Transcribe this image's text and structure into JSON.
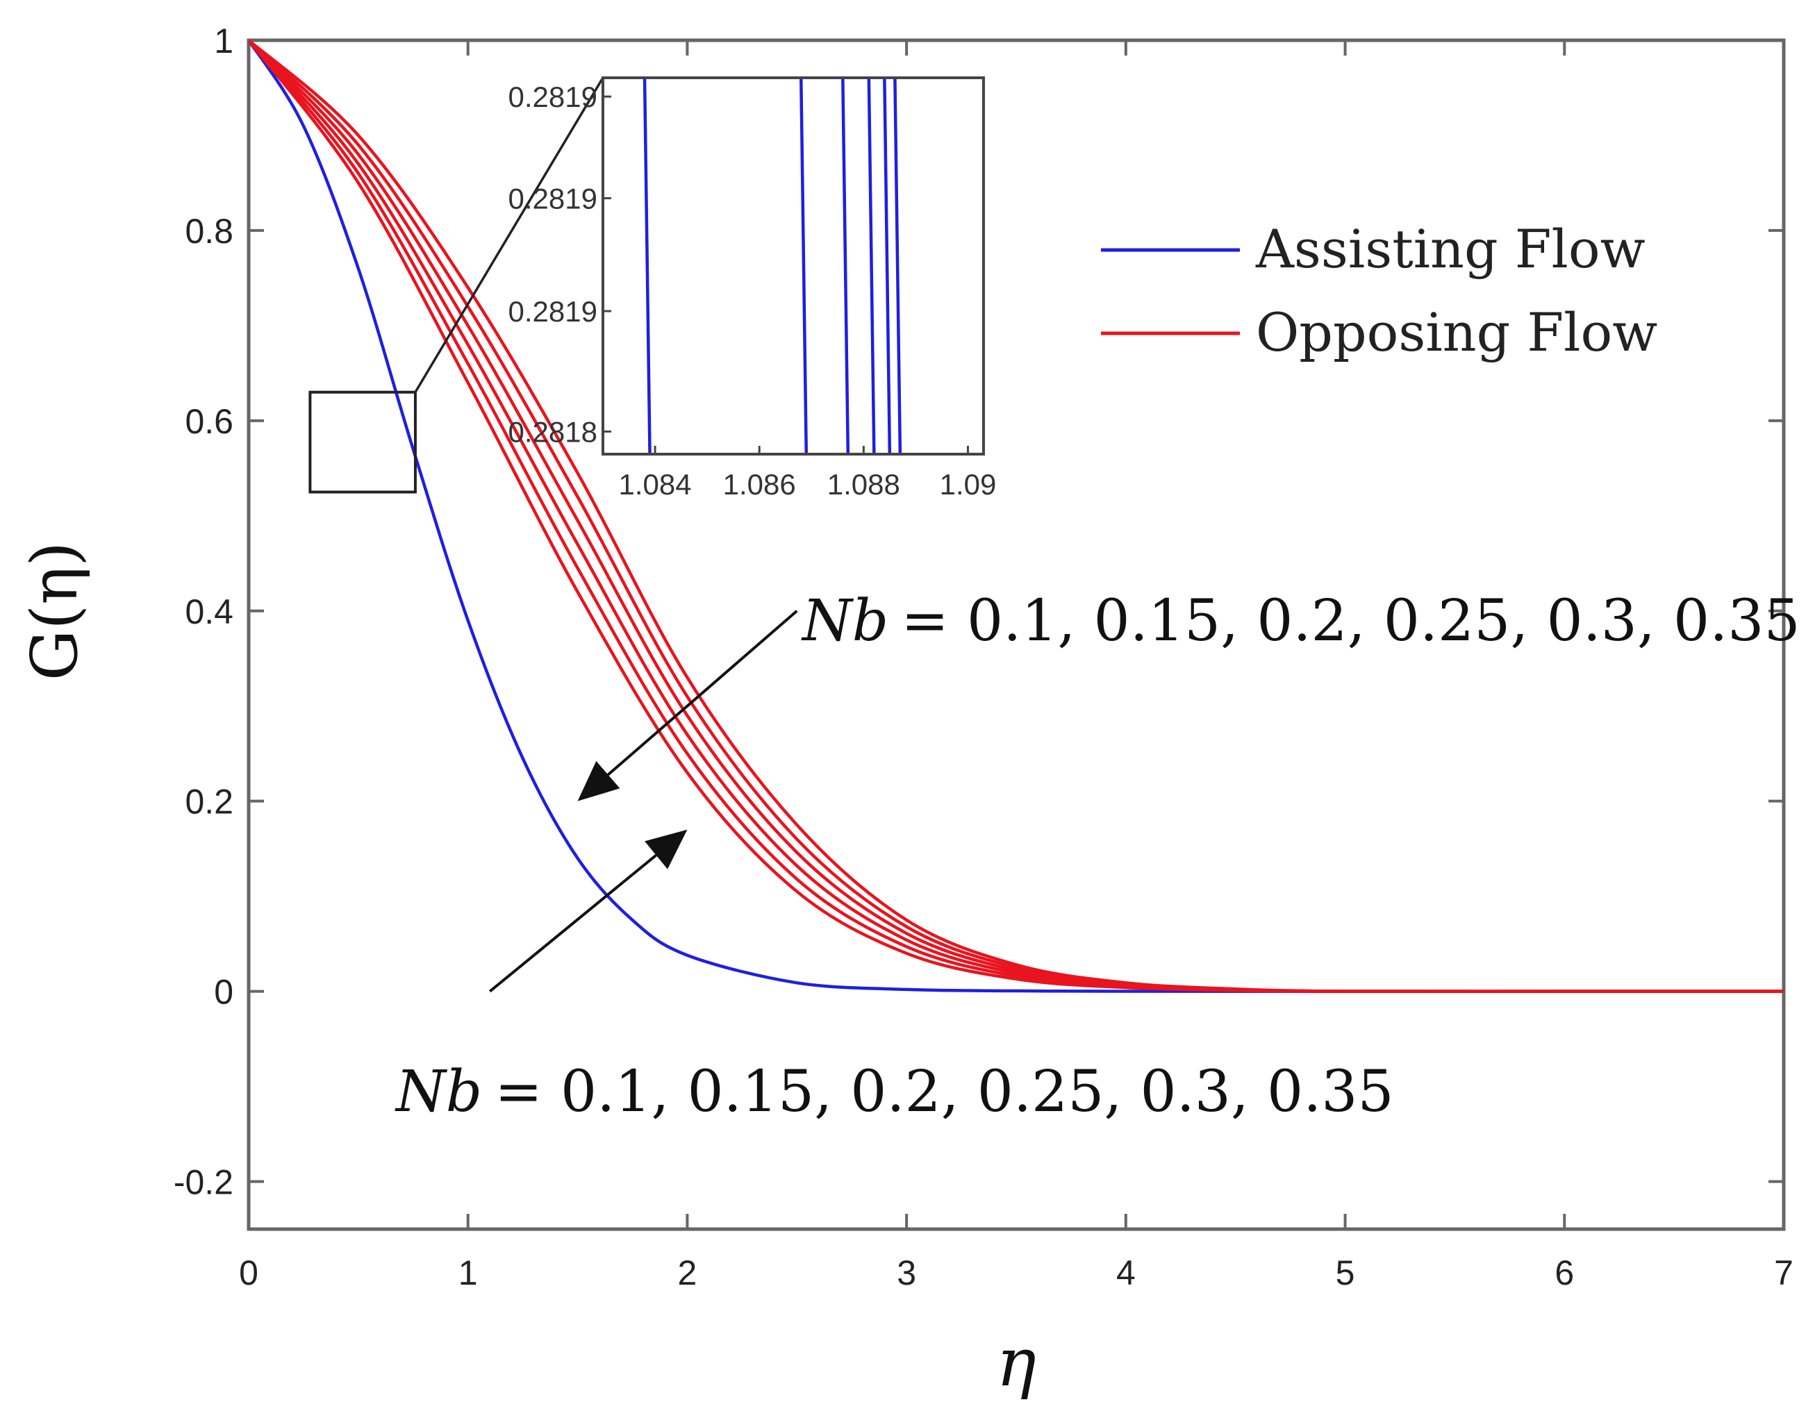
{
  "chart_data": {
    "type": "line",
    "xlabel": "η",
    "ylabel": "G(η)",
    "xlim": [
      0,
      7
    ],
    "ylim": [
      -0.25,
      1
    ],
    "xticks": [
      "0",
      "1",
      "2",
      "3",
      "4",
      "5",
      "6",
      "7"
    ],
    "yticks": [
      "-0.2",
      "0",
      "0.2",
      "0.4",
      "0.6",
      "0.8",
      "1"
    ],
    "grid": false,
    "legend": {
      "placement": "top-right",
      "entries": [
        {
          "label": "Assisting Flow",
          "color": "#1f1fe0"
        },
        {
          "label": "Opposing Flow",
          "color": "#e8141e"
        }
      ]
    },
    "series": [
      {
        "name": "Assisting Flow",
        "color": "#1f1fe0",
        "x": [
          0,
          0.25,
          0.5,
          0.75,
          1.0,
          1.25,
          1.5,
          1.75,
          2.0,
          2.5,
          3.0,
          3.5,
          4.0,
          5.0,
          6.0,
          7.0
        ],
        "y": [
          1.0,
          0.91,
          0.76,
          0.57,
          0.39,
          0.245,
          0.14,
          0.075,
          0.038,
          0.009,
          0.002,
          0.0005,
          0.0001,
          0,
          0,
          0
        ]
      },
      {
        "name": "Opposing Flow",
        "color": "#e8141e",
        "x": [
          0,
          0.5,
          1.0,
          1.5,
          2.0,
          2.5,
          3.0,
          3.5,
          4.0,
          4.5,
          5.0,
          6.0,
          7.0
        ],
        "y": [
          1.0,
          0.85,
          0.64,
          0.42,
          0.23,
          0.105,
          0.04,
          0.013,
          0.004,
          0.001,
          0,
          0,
          0
        ]
      },
      {
        "name": "Opposing Flow",
        "color": "#e8141e",
        "x": [
          0,
          0.5,
          1.0,
          1.5,
          2.0,
          2.5,
          3.0,
          3.5,
          4.0,
          4.5,
          5.0,
          6.0,
          7.0
        ],
        "y": [
          1.0,
          0.86,
          0.66,
          0.445,
          0.25,
          0.118,
          0.047,
          0.016,
          0.005,
          0.0012,
          0,
          0,
          0
        ]
      },
      {
        "name": "Opposing Flow",
        "color": "#e8141e",
        "x": [
          0,
          0.5,
          1.0,
          1.5,
          2.0,
          2.5,
          3.0,
          3.5,
          4.0,
          4.5,
          5.0,
          6.0,
          7.0
        ],
        "y": [
          1.0,
          0.87,
          0.68,
          0.47,
          0.27,
          0.132,
          0.054,
          0.019,
          0.006,
          0.0015,
          0,
          0,
          0
        ]
      },
      {
        "name": "Opposing Flow",
        "color": "#e8141e",
        "x": [
          0,
          0.5,
          1.0,
          1.5,
          2.0,
          2.5,
          3.0,
          3.5,
          4.0,
          4.5,
          5.0,
          6.0,
          7.0
        ],
        "y": [
          1.0,
          0.88,
          0.7,
          0.495,
          0.29,
          0.146,
          0.061,
          0.022,
          0.007,
          0.0018,
          0,
          0,
          0
        ]
      },
      {
        "name": "Opposing Flow",
        "color": "#e8141e",
        "x": [
          0,
          0.5,
          1.0,
          1.5,
          2.0,
          2.5,
          3.0,
          3.5,
          4.0,
          4.5,
          5.0,
          6.0,
          7.0
        ],
        "y": [
          1.0,
          0.89,
          0.72,
          0.52,
          0.31,
          0.16,
          0.068,
          0.025,
          0.008,
          0.002,
          0,
          0,
          0
        ]
      },
      {
        "name": "Opposing Flow",
        "color": "#e8141e",
        "x": [
          0,
          0.5,
          1.0,
          1.5,
          2.0,
          2.5,
          3.0,
          3.5,
          4.0,
          4.5,
          5.0,
          6.0,
          7.0
        ],
        "y": [
          1.0,
          0.9,
          0.74,
          0.545,
          0.33,
          0.175,
          0.075,
          0.028,
          0.009,
          0.0025,
          0,
          0,
          0
        ]
      }
    ],
    "annotations": [
      {
        "text_lhs": "Nb",
        "text_rhs": "= 0.1, 0.15, 0.2, 0.25, 0.3, 0.35",
        "position": "upper-right",
        "arrow_from": [
          2.5,
          0.4
        ],
        "arrow_to": [
          1.5,
          0.2
        ]
      },
      {
        "text_lhs": "Nb",
        "text_rhs": "= 0.1, 0.15, 0.2, 0.25, 0.3, 0.35",
        "position": "lower-middle",
        "arrow_from": [
          1.1,
          0.0
        ],
        "arrow_to": [
          2.0,
          0.17
        ]
      }
    ],
    "zoom_box": {
      "x": [
        0.28,
        0.76
      ],
      "y": [
        0.525,
        0.63
      ]
    },
    "inset": {
      "xlim": [
        1.083,
        1.0903
      ],
      "ylim": [
        0.28176,
        0.28193
      ],
      "xticks": [
        "1.084",
        "1.086",
        "1.088",
        "1.09"
      ],
      "yticks": [
        "0.2818",
        "0.2819",
        "0.2819",
        "0.2819"
      ],
      "lines": [
        {
          "color": "#1f1fe0",
          "x1": 1.0838,
          "x2": 1.0839
        },
        {
          "color": "#1f1fe0",
          "x1": 1.0868,
          "x2": 1.0869
        },
        {
          "color": "#1f1fe0",
          "x1": 1.0876,
          "x2": 1.0877
        },
        {
          "color": "#1f1fe0",
          "x1": 1.0881,
          "x2": 1.0882
        },
        {
          "color": "#1f1fe0",
          "x1": 1.0884,
          "x2": 1.0885
        },
        {
          "color": "#1f1fe0",
          "x1": 1.0886,
          "x2": 1.0887
        }
      ]
    }
  }
}
